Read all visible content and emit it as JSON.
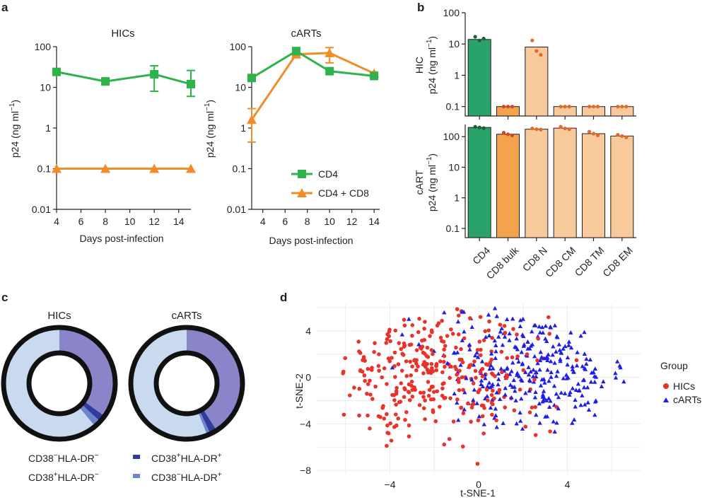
{
  "panel_letters": {
    "a": "a",
    "b": "b",
    "c": "c",
    "d": "d"
  },
  "colors": {
    "cd4_green": "#2db34a",
    "cd8_orange": "#f28c28",
    "bar_cd4": "#2aa36b",
    "bar_bulk": "#f3a24d",
    "bar_light": "#f8c99a",
    "hic_red": "#e8332a",
    "cart_blue": "#1e1ee6",
    "donut_light": "#c9daf0",
    "donut_purple": "#8a85c9",
    "donut_dark": "#2f3c9b",
    "donut_mid": "#6c86cc"
  },
  "chart_data": [
    {
      "id": "a-hics",
      "type": "line",
      "title": "HICs",
      "xlabel": "Days post-infection",
      "ylabel": "p24 (ng ml",
      "ylabel_sup": "−1",
      "ylabel_close": ")",
      "yscale": "log",
      "ylim": [
        0.01,
        100
      ],
      "xlim": [
        4,
        15
      ],
      "xticks": [
        "4",
        "6",
        "8",
        "10",
        "12",
        "14"
      ],
      "yticks": [
        "100",
        "10",
        "1",
        "0.1",
        "0.01"
      ],
      "series": [
        {
          "name": "CD4",
          "marker": "square",
          "x": [
            4,
            8,
            12,
            15
          ],
          "y": [
            24,
            14,
            21,
            12
          ],
          "err_low": [
            22,
            12,
            8,
            6
          ],
          "err_high": [
            27,
            16,
            34,
            26
          ]
        },
        {
          "name": "CD4 + CD8",
          "marker": "triangle",
          "x": [
            4,
            8,
            12,
            15
          ],
          "y": [
            0.1,
            0.1,
            0.1,
            0.1
          ]
        }
      ]
    },
    {
      "id": "a-carts",
      "type": "line",
      "title": "cARTs",
      "xlabel": "Days post-infection",
      "ylabel": "p24 (ng ml",
      "ylabel_sup": "−1",
      "ylabel_close": ")",
      "yscale": "log",
      "ylim": [
        0.01,
        100
      ],
      "xlim": [
        3,
        14.5
      ],
      "xticks": [
        "4",
        "6",
        "8",
        "10",
        "12",
        "14"
      ],
      "yticks": [
        "100",
        "10",
        "1",
        "0.1",
        "0.01"
      ],
      "legend": [
        "CD4",
        "CD4 + CD8"
      ],
      "legend_position": "bottom-right",
      "series": [
        {
          "name": "CD4",
          "marker": "square",
          "x": [
            3,
            7,
            10,
            14
          ],
          "y": [
            17,
            78,
            25,
            19
          ]
        },
        {
          "name": "CD4 + CD8",
          "marker": "triangle",
          "x": [
            3,
            7,
            10,
            14
          ],
          "y": [
            1.6,
            65,
            70,
            22
          ],
          "err_low": [
            0.45,
            60,
            40,
            20
          ],
          "err_high": [
            3,
            70,
            95,
            24
          ]
        }
      ]
    },
    {
      "id": "b-hic",
      "type": "bar",
      "ylabel_top": "HIC",
      "ylabel": "p24 (ng ml",
      "ylabel_sup": "−1",
      "ylabel_close": ")",
      "yscale": "log",
      "ylim": [
        0.05,
        100
      ],
      "yticks": [
        "100",
        "10",
        "1",
        "0.1"
      ],
      "categories": [
        "CD4",
        "CD8 bulk",
        "CD8 N",
        "CD8 CM",
        "CD8 TM",
        "CD8 EM"
      ],
      "values": [
        14,
        0.1,
        8,
        0.1,
        0.1,
        0.1
      ],
      "points": [
        [
          17,
          13,
          15
        ],
        [
          0.1,
          0.1,
          0.1
        ],
        [
          13,
          6,
          4.5
        ],
        [
          0.1,
          0.1,
          0.1
        ],
        [
          0.1,
          0.1,
          0.1
        ],
        [
          0.1,
          0.1,
          0.1
        ]
      ]
    },
    {
      "id": "b-cart",
      "type": "bar",
      "ylabel_top": "cART",
      "ylabel": "p24 (ng ml",
      "ylabel_sup": "−1",
      "ylabel_close": ")",
      "yscale": "log",
      "ylim": [
        0.05,
        250
      ],
      "yticks": [
        "100",
        "10",
        "1",
        "0.1"
      ],
      "categories": [
        "CD4",
        "CD8 bulk",
        "CD8 N",
        "CD8 CM",
        "CD8 TM",
        "CD8 EM"
      ],
      "values": [
        200,
        120,
        175,
        190,
        125,
        105
      ],
      "points": [
        [
          210,
          200,
          190
        ],
        [
          135,
          120,
          110
        ],
        [
          185,
          175,
          170
        ],
        [
          210,
          185,
          175
        ],
        [
          145,
          125,
          110
        ],
        [
          115,
          105,
          95
        ]
      ]
    },
    {
      "id": "c-donuts",
      "type": "pie",
      "charts": [
        {
          "title": "HICs",
          "slices": [
            {
              "name": "CD38+HLA-DR−",
              "value": 35
            },
            {
              "name": "CD38+HLA-DR+",
              "value": 2
            },
            {
              "name": "CD38−HLA-DR+",
              "value": 2
            },
            {
              "name": "CD38−HLA-DR−",
              "value": 61
            }
          ]
        },
        {
          "title": "cARTs",
          "slices": [
            {
              "name": "CD38+HLA-DR−",
              "value": 41
            },
            {
              "name": "CD38+HLA-DR+",
              "value": 2
            },
            {
              "name": "CD38−HLA-DR+",
              "value": 1
            },
            {
              "name": "CD38−HLA-DR−",
              "value": 56
            }
          ]
        }
      ],
      "legend": [
        {
          "pre": "CD38",
          "s1": "−",
          "mid": "HLA-DR",
          "s2": "−",
          "key": "light"
        },
        {
          "pre": "CD38",
          "s1": "+",
          "mid": "HLA-DR",
          "s2": "+",
          "key": "dark"
        },
        {
          "pre": "CD38",
          "s1": "+",
          "mid": "HLA-DR",
          "s2": "−",
          "key": "purple"
        },
        {
          "pre": "CD38",
          "s1": "−",
          "mid": "HLA-DR",
          "s2": "+",
          "key": "mid"
        }
      ]
    },
    {
      "id": "d-tsne",
      "type": "scatter",
      "xlabel": "t-SNE-1",
      "ylabel": "t-SNE-2",
      "xlim": [
        -7.3,
        7.3
      ],
      "ylim": [
        -8.3,
        6.3
      ],
      "xticks": [
        "−4",
        "0",
        "4"
      ],
      "yticks": [
        "4",
        "0",
        "−4",
        "−8"
      ],
      "legend_title": "Group",
      "series": [
        {
          "name": "HICs",
          "marker": "circle",
          "count": 330,
          "center": [
            -2.2,
            0.5
          ],
          "spread": [
            2.6,
            3.0
          ]
        },
        {
          "name": "cARTs",
          "marker": "triangle",
          "count": 300,
          "center": [
            2.5,
            0.9
          ],
          "spread": [
            2.2,
            2.6
          ]
        }
      ]
    }
  ]
}
